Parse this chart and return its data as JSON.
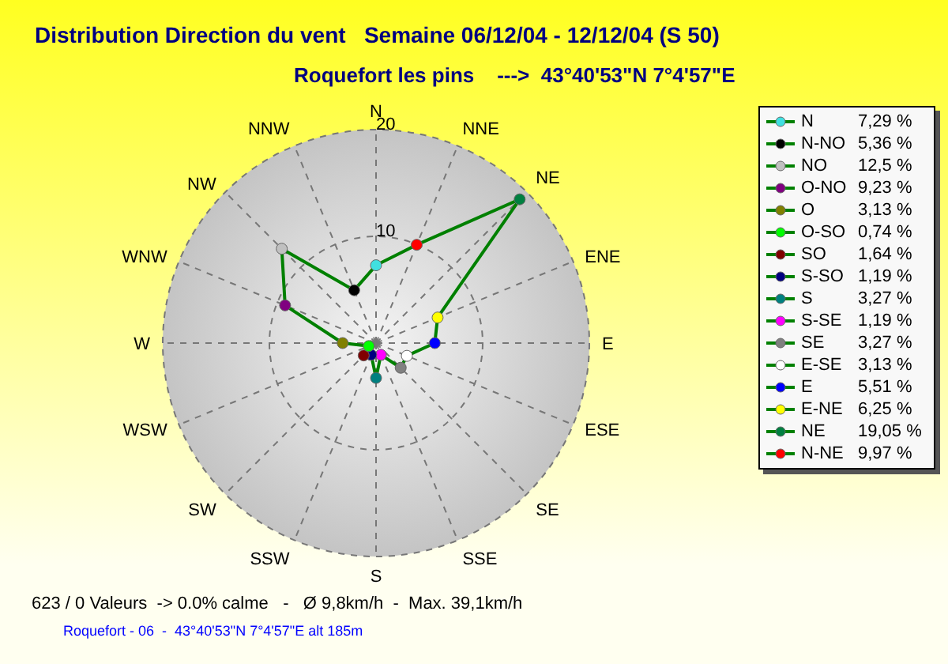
{
  "chart_data": {
    "type": "radar",
    "title": "Distribution Direction du vent   Semaine 06/12/04 - 12/12/04 (S 50)",
    "subtitle": "Roquefort les pins    --->  43°40'53\"N 7°4'57\"E",
    "categories": [
      "N",
      "NNE",
      "NE",
      "ENE",
      "E",
      "ESE",
      "SE",
      "SSE",
      "S",
      "SSW",
      "SW",
      "WSW",
      "W",
      "WNW",
      "NW",
      "NNW"
    ],
    "series": [
      {
        "color": "#008000",
        "values": [
          7.29,
          9.97,
          19.05,
          6.25,
          5.51,
          3.13,
          3.27,
          1.19,
          3.27,
          1.19,
          1.64,
          0.74,
          3.13,
          9.23,
          12.5,
          5.36
        ],
        "colors": [
          "#40e0e0",
          "#ff0000",
          "#008040",
          "#ffff00",
          "#0000ff",
          "#ffffff",
          "#808080",
          "#ff00ff",
          "#008080",
          "#000080",
          "#800000",
          "#00ff00",
          "#808000",
          "#800080",
          "#c0c0c0",
          "#000000"
        ]
      }
    ],
    "ylim": [
      0,
      20
    ],
    "yticks": [
      10,
      20
    ],
    "grid": true,
    "marker": "circle",
    "line_style": "solid",
    "annotations": [
      "N 7,29 %",
      "N-NO 5,36 %",
      "NO 12,5 %",
      "O-NO 9,23 %",
      "O 3,13 %",
      "O-SO 0,74 %",
      "SO 1,64 %",
      "S-SO 1,19 %",
      "S 3,27 %",
      "S-SE 1,19 %",
      "SE 3,27 %",
      "E-SE 3,13 %",
      "E 5,51 %",
      "E-NE 6,25 %",
      "NE 19,05 %",
      "N-NE 9,97 %",
      "623 / 0 Valeurs  -> 0.0% calme   -   Ø 9,8km/h  -  Max. 39,1km/h",
      "Roquefort - 06  -  43°40'53\"N 7°4'57\"E alt 185m"
    ]
  }
}
